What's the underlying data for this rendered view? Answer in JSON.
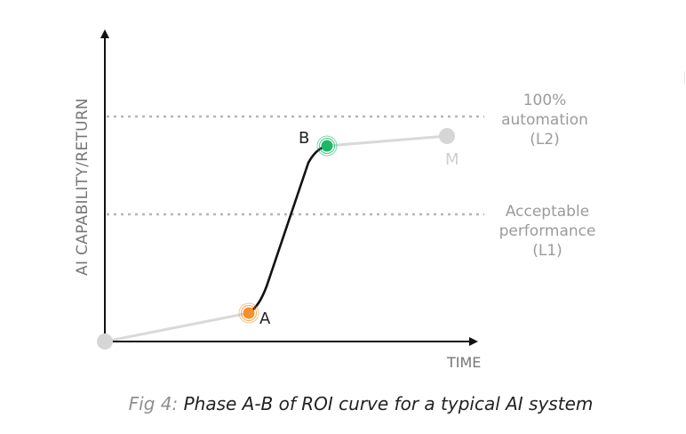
{
  "diagram": {
    "y_axis_label": "AI CAPABILITY/RETURN",
    "x_axis_label": "TIME",
    "levels": [
      {
        "id": "L2",
        "lines": [
          "100%",
          "automation",
          "(L2)"
        ]
      },
      {
        "id": "L1",
        "lines": [
          "Acceptable",
          "performance",
          "(L1)"
        ]
      }
    ],
    "points": [
      {
        "id": "origin",
        "label": "",
        "color": "#d6d6d6"
      },
      {
        "id": "A",
        "label": "A",
        "color": "#f5902b"
      },
      {
        "id": "B",
        "label": "B",
        "color": "#1db866"
      },
      {
        "id": "M",
        "label": "M",
        "color": "#d6d6d6"
      }
    ],
    "colors": {
      "axis": "#111111",
      "reference_line": "#b5b5b5",
      "grey_segment": "#d9d9d9",
      "ab_segment": "#111111"
    }
  },
  "caption": {
    "prefix": "Fig 4:",
    "text": "Phase A-B of ROI curve for a typical AI system"
  }
}
